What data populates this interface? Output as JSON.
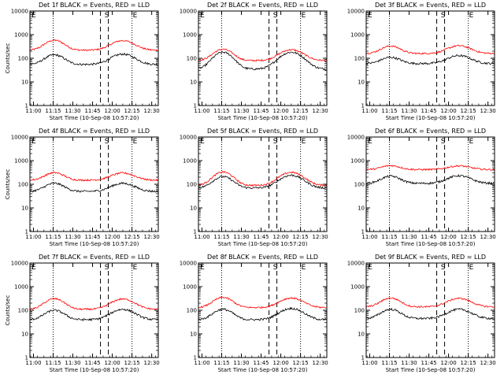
{
  "chart_data": {
    "type": "line",
    "y_scale": "log",
    "ylim": [
      1,
      10000
    ],
    "y_ticks": [
      "1",
      "10",
      "100",
      "1000",
      "10000"
    ],
    "x_ticks": [
      "11:00",
      "11:15",
      "11:30",
      "11:45",
      "12:00",
      "12:15",
      "12:30"
    ],
    "xlabel": "Start Time (10-Sep-08 10:57:20)",
    "ylabel": "Counts/sec",
    "x_markers": [
      "E",
      "S",
      "E"
    ],
    "colors": {
      "events": "#000000",
      "lld": "#ff0000"
    },
    "panels": [
      {
        "title": "Det 1f BLACK = Events, RED = LLD",
        "lld": {
          "base": 220,
          "peak1": 580,
          "peak2": 560
        },
        "events": {
          "base": 55,
          "peak1": 140,
          "peak2": 150
        }
      },
      {
        "title": "Det 2f BLACK = Events, RED = LLD",
        "lld": {
          "base": 80,
          "peak1": 240,
          "peak2": 230
        },
        "events": {
          "base": 35,
          "peak1": 180,
          "peak2": 180
        }
      },
      {
        "title": "Det 3f BLACK = Events, RED = LLD",
        "lld": {
          "base": 160,
          "peak1": 330,
          "peak2": 340
        },
        "events": {
          "base": 60,
          "peak1": 110,
          "peak2": 130
        }
      },
      {
        "title": "Det 4f BLACK = Events, RED = LLD",
        "lld": {
          "base": 150,
          "peak1": 310,
          "peak2": 300
        },
        "events": {
          "base": 50,
          "peak1": 110,
          "peak2": 110
        }
      },
      {
        "title": "Det 5f BLACK = Events, RED = LLD",
        "lld": {
          "base": 90,
          "peak1": 330,
          "peak2": 320
        },
        "events": {
          "base": 70,
          "peak1": 210,
          "peak2": 240
        }
      },
      {
        "title": "Det 6f BLACK = Events, RED = LLD",
        "lld": {
          "base": 420,
          "peak1": 620,
          "peak2": 600
        },
        "events": {
          "base": 110,
          "peak1": 220,
          "peak2": 230
        }
      },
      {
        "title": "Det 7f BLACK = Events, RED = LLD",
        "lld": {
          "base": 110,
          "peak1": 310,
          "peak2": 300
        },
        "events": {
          "base": 40,
          "peak1": 100,
          "peak2": 110
        }
      },
      {
        "title": "Det 8f BLACK = Events, RED = LLD",
        "lld": {
          "base": 130,
          "peak1": 350,
          "peak2": 330
        },
        "events": {
          "base": 40,
          "peak1": 110,
          "peak2": 120
        }
      },
      {
        "title": "Det 9f BLACK = Events, RED = LLD",
        "lld": {
          "base": 140,
          "peak1": 330,
          "peak2": 320
        },
        "events": {
          "base": 45,
          "peak1": 110,
          "peak2": 110
        }
      }
    ]
  }
}
